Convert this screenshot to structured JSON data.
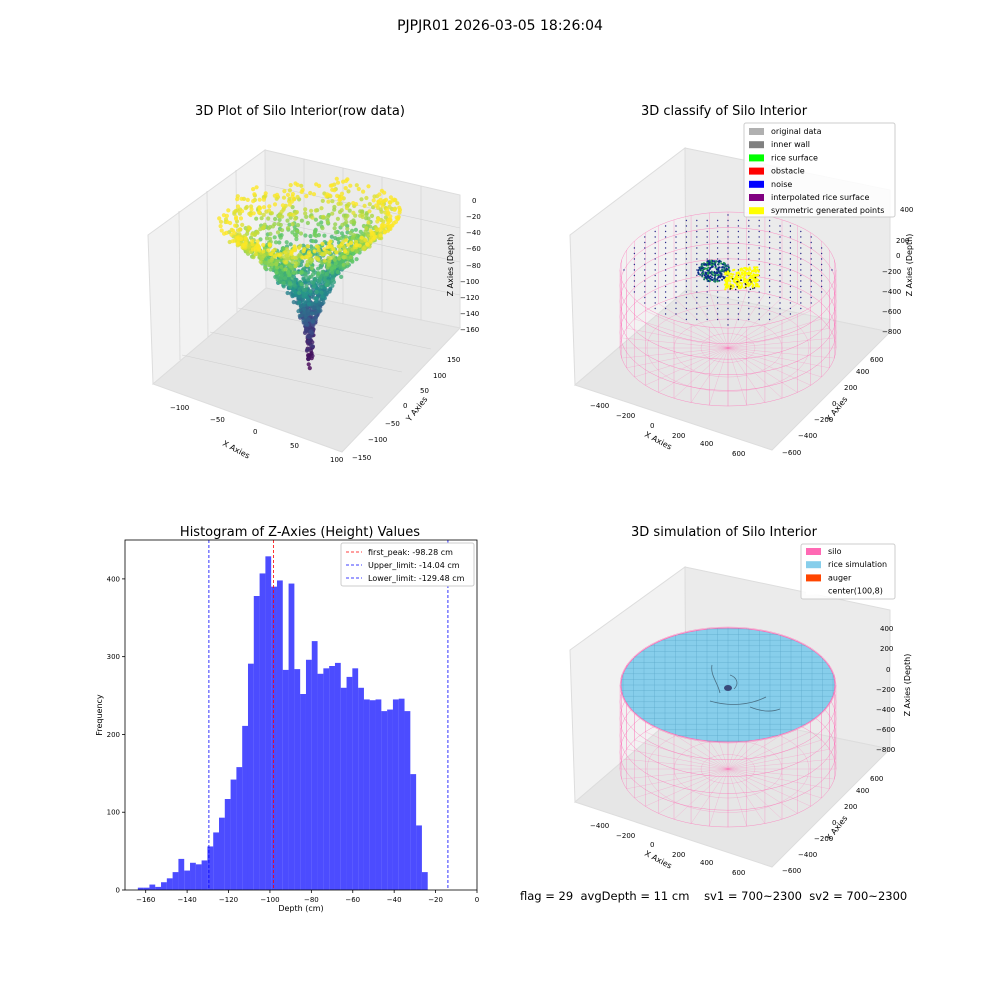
{
  "figure": {
    "suptitle": "PJPJR01 2026-03-05 18:26:04",
    "status": {
      "flag": "flag = 29",
      "avg_depth": "avgDepth = 11 cm",
      "sv1": "sv1 = 700~2300",
      "sv2": "sv2 = 700~2300"
    }
  },
  "panels": {
    "raw": {
      "title": "3D Plot of Silo Interior(row data)",
      "xlabel": "X Axies",
      "ylabel": "Y Axies",
      "zlabel": "Z Axies (Depth)",
      "xticks": [
        "−100",
        "−50",
        "0",
        "50",
        "100"
      ],
      "yticks": [
        "−150",
        "−100",
        "−50",
        "0",
        "50",
        "100",
        "150"
      ],
      "zticks": [
        "0",
        "−20",
        "−40",
        "−60",
        "−80",
        "−100",
        "−120",
        "−140",
        "−160"
      ]
    },
    "classify": {
      "title": "3D classify of Silo Interior",
      "xlabel": "X Axies",
      "ylabel": "Y Axies",
      "zlabel": "Z Axies (Depth)",
      "xticks": [
        "−400",
        "−200",
        "0",
        "200",
        "400",
        "600"
      ],
      "yticks": [
        "−600",
        "−400",
        "−200",
        "0",
        "200",
        "400",
        "600"
      ],
      "zticks": [
        "400",
        "200",
        "0",
        "−200",
        "−400",
        "−600",
        "−800"
      ],
      "legend": [
        {
          "label": "original data",
          "color": "#b0b0b0"
        },
        {
          "label": "inner wall",
          "color": "#808080"
        },
        {
          "label": "rice surface",
          "color": "#00ff00"
        },
        {
          "label": "obstacle",
          "color": "#ff0000"
        },
        {
          "label": "noise",
          "color": "#0000ff"
        },
        {
          "label": "interpolated rice surface",
          "color": "#800080"
        },
        {
          "label": "symmetric generated points",
          "color": "#ffff00"
        }
      ]
    },
    "simulation": {
      "title": "3D simulation of Silo Interior",
      "xlabel": "X Axies",
      "ylabel": "Y Axies",
      "zlabel": "Z Axies (Depth)",
      "xticks": [
        "−400",
        "−200",
        "0",
        "200",
        "400",
        "600"
      ],
      "yticks": [
        "−600",
        "−400",
        "−200",
        "0",
        "200",
        "400",
        "600"
      ],
      "zticks": [
        "400",
        "200",
        "0",
        "−200",
        "−400",
        "−600",
        "−800"
      ],
      "legend": [
        {
          "label": "silo",
          "color": "#ff69b4"
        },
        {
          "label": "rice simulation",
          "color": "#87ceeb"
        },
        {
          "label": "auger",
          "color": "#ff4500"
        },
        {
          "label": "center(100,8)",
          "color": "#ffffff"
        }
      ]
    }
  },
  "chart_data": {
    "type": "bar",
    "title": "Histogram of Z-Axies (Height) Values",
    "xlabel": "Depth (cm)",
    "ylabel": "Frequency",
    "xlim": [
      -170,
      0
    ],
    "ylim": [
      0,
      450
    ],
    "xticks": [
      -160,
      -140,
      -120,
      -100,
      -80,
      -60,
      -40,
      -20,
      0
    ],
    "yticks": [
      0,
      100,
      200,
      300,
      400
    ],
    "bin_start": -163.8,
    "bin_width": 2.8,
    "values": [
      3,
      3,
      7,
      4,
      10,
      15,
      23,
      40,
      25,
      35,
      33,
      38,
      56,
      74,
      93,
      117,
      142,
      158,
      211,
      291,
      378,
      407,
      429,
      390,
      398,
      283,
      394,
      284,
      252,
      296,
      320,
      278,
      285,
      288,
      292,
      260,
      274,
      285,
      260,
      245,
      244,
      245,
      230,
      232,
      245,
      246,
      230,
      149,
      83,
      23
    ],
    "bar_color": "#0000ff",
    "bar_alpha": 0.7,
    "lines": [
      {
        "label": "first_peak: -98.28 cm",
        "x": -98.28,
        "color": "#ff0000"
      },
      {
        "label": "Upper_limit: -14.04 cm",
        "x": -14.04,
        "color": "#0000ff"
      },
      {
        "label": "Lower_limit: -129.48 cm",
        "x": -129.48,
        "color": "#0000ff"
      }
    ],
    "legend_position": "upper right"
  }
}
